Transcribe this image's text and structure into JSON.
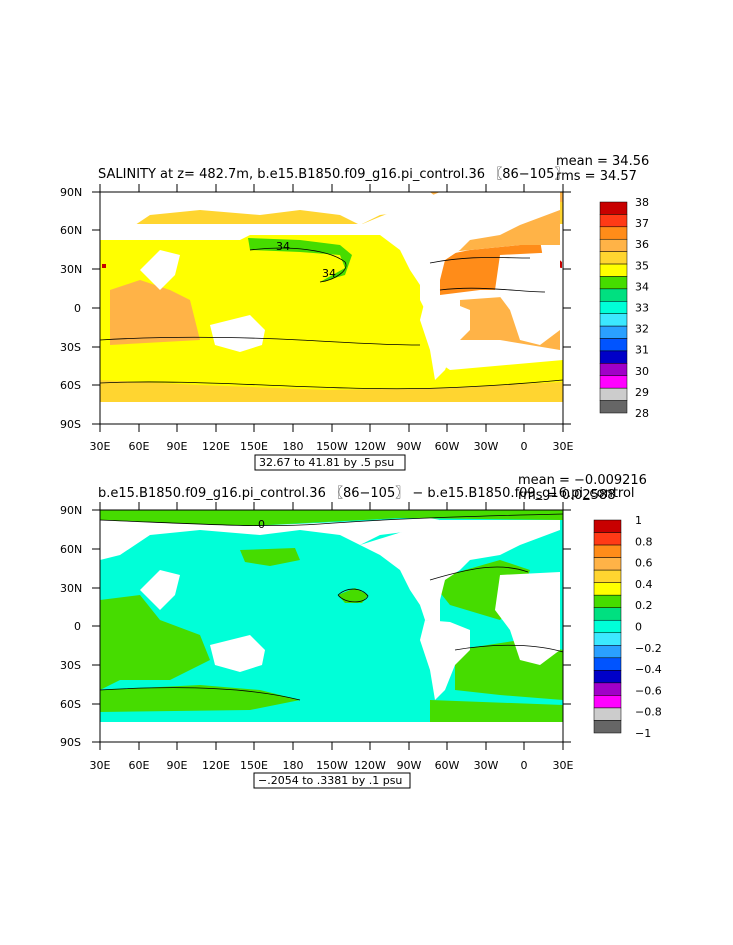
{
  "panels": [
    {
      "title": "SALINITY at z= 482.7m, b.e15.B1850.f09_g16.pi_control.36 〖86−105〗",
      "mean_text": "mean = 34.56",
      "rms_text": "rms = 34.57",
      "info_text": "32.67 to 41.81 by .5 psu",
      "contour_labels": [
        "34",
        "34"
      ],
      "colorbar_labels": [
        "38",
        "37",
        "36",
        "35",
        "34",
        "33",
        "32",
        "31",
        "30",
        "29",
        "28"
      ],
      "colorbar_colors": [
        "#c80000",
        "#ff3a16",
        "#ff8c19",
        "#ffb347",
        "#ffd530",
        "#ffff00",
        "#46dc00",
        "#00e080",
        "#00ffd8",
        "#3ce8ff",
        "#2aa0ff",
        "#0054ff",
        "#0000c8",
        "#a000c8",
        "#ff00ff",
        "#cccccc",
        "#666666"
      ]
    },
    {
      "title": "b.e15.B1850.f09_g16.pi_control.36 〖86−105〗 − b.e15.B1850.f09_g16.pi_control",
      "mean_text": "mean = −0.009216",
      "rms_text": "rms = 0.02588",
      "info_text": "−.2054 to .3381 by .1 psu",
      "contour_labels": [
        "0"
      ],
      "colorbar_labels": [
        "1",
        "0.8",
        "0.6",
        "0.4",
        "0.2",
        "0",
        "−0.2",
        "−0.4",
        "−0.6",
        "−0.8",
        "−1"
      ],
      "colorbar_colors": [
        "#c80000",
        "#ff3a16",
        "#ff8c19",
        "#ffb347",
        "#ffd530",
        "#ffff00",
        "#46dc00",
        "#00e080",
        "#00ffd8",
        "#3ce8ff",
        "#2aa0ff",
        "#0054ff",
        "#0000c8",
        "#a000c8",
        "#ff00ff",
        "#cccccc",
        "#666666"
      ]
    }
  ],
  "lat_labels": [
    "90N",
    "60N",
    "30N",
    "0",
    "30S",
    "60S",
    "90S"
  ],
  "lon_labels": [
    "30E",
    "60E",
    "90E",
    "120E",
    "150E",
    "180",
    "150W",
    "120W",
    "90W",
    "60W",
    "30W",
    "0",
    "30E"
  ],
  "map_colors": {
    "yellow": "#ffff00",
    "light_orange": "#ffd530",
    "tan_orange": "#ffb347",
    "orange": "#ff8c19",
    "dark_red": "#c80000",
    "green": "#46dc00",
    "cyan": "#00ffd8",
    "aqua_green": "#00e080"
  }
}
